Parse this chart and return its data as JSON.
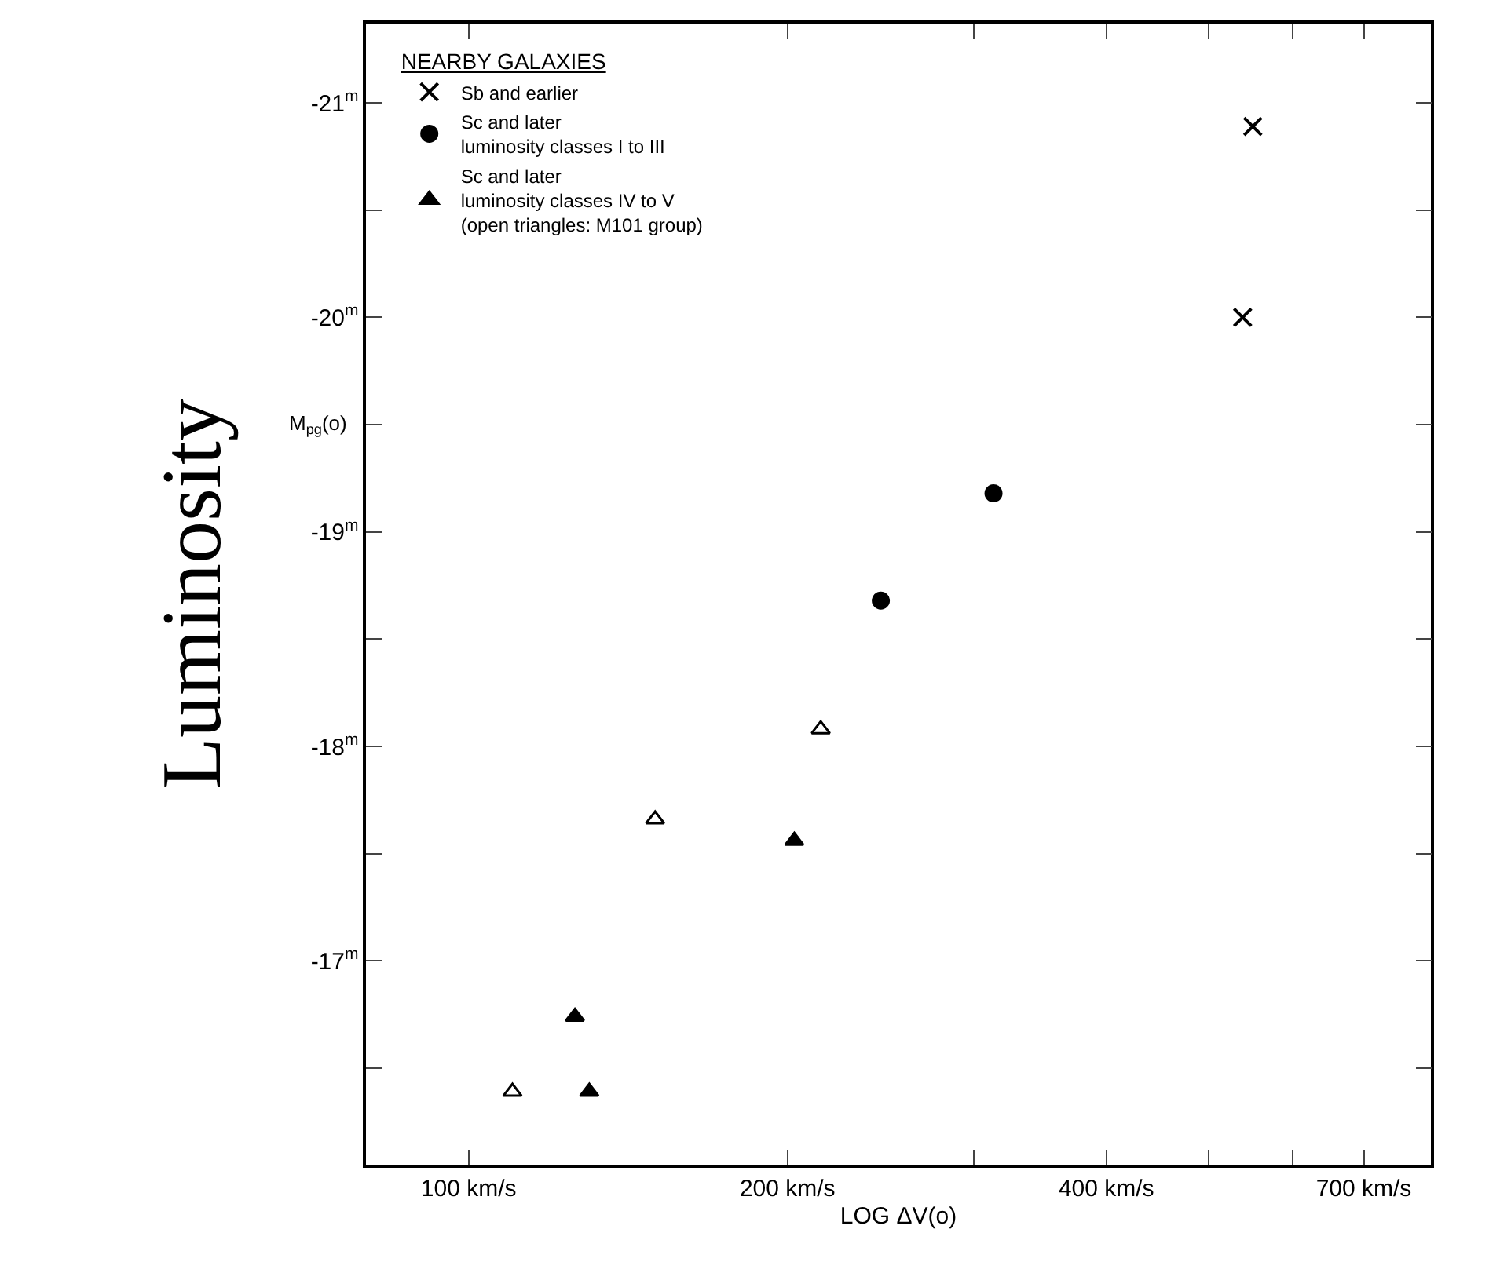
{
  "chart_data": {
    "type": "scatter",
    "ylabel": "Luminosity",
    "xlabel": "LOG ΔV(o)",
    "annotations": [
      "M$_{pg}$(o)"
    ],
    "legend_title": "NEARBY GALAXIES",
    "legend": "top left",
    "log": "x",
    "xlim": [
      80,
      810
    ],
    "xticks": [
      {
        "value": 100,
        "label": "100 km/s"
      },
      {
        "value": 200,
        "label": "200 km/s"
      },
      {
        "value": 300,
        "label": null
      },
      {
        "value": 400,
        "label": "400 km/s"
      },
      {
        "value": 500,
        "label": null
      },
      {
        "value": 600,
        "label": null
      },
      {
        "value": 700,
        "label": "700 km/s"
      }
    ],
    "ylim": [
      -16.05,
      -21.37
    ],
    "yticks": [
      {
        "value": -21,
        "label": "-21$^{m}$"
      },
      {
        "value": -20.5,
        "label": null
      },
      {
        "value": -20,
        "label": "-20$^{m}$"
      },
      {
        "value": -19.5,
        "label": null
      },
      {
        "value": -19,
        "label": "-19$^{m}$"
      },
      {
        "value": -18.5,
        "label": null
      },
      {
        "value": -18,
        "label": "-18$^{m}$"
      },
      {
        "value": -17.5,
        "label": null
      },
      {
        "value": -17,
        "label": "-17$^{m}$"
      },
      {
        "value": -16.5,
        "label": null
      }
    ],
    "series": [
      {
        "name": "Sb and earlier",
        "color": "#000000",
        "marker": "cross",
        "x": [
          550,
          538
        ],
        "values": [
          -20.89,
          -20.0
        ]
      },
      {
        "name": "Sc and later\nluminosity classes I to III",
        "color": "#000000",
        "marker": "circle",
        "x": [
          313,
          245
        ],
        "values": [
          -19.18,
          -18.68
        ]
      },
      {
        "name": "Sc and later\nluminosity classes IV to V\n(open triangles: M101 group)",
        "color": "#000000",
        "marker": "triangle",
        "x": [
          203,
          126,
          130
        ],
        "values": [
          -17.56,
          -16.74,
          -16.39
        ]
      },
      {
        "color": "#ffffff",
        "marker": "triangle",
        "x": [
          215,
          150,
          110
        ],
        "values": [
          -18.08,
          -17.66,
          -16.39
        ]
      }
    ]
  }
}
